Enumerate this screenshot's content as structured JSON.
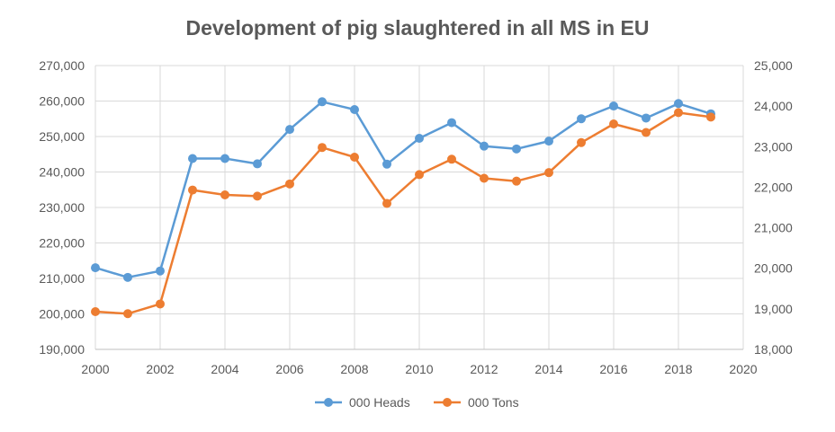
{
  "chart_data": {
    "type": "line",
    "title": "Development of pig slaughtered in all MS in EU",
    "x": [
      2000,
      2001,
      2002,
      2003,
      2004,
      2005,
      2006,
      2007,
      2008,
      2009,
      2010,
      2011,
      2012,
      2013,
      2014,
      2015,
      2016,
      2017,
      2018,
      2019
    ],
    "x_ticks": [
      "2000",
      "2002",
      "2004",
      "2006",
      "2008",
      "2010",
      "2012",
      "2014",
      "2016",
      "2018",
      "2020"
    ],
    "xlim": [
      2000,
      2020
    ],
    "y_left_ticks": [
      "190,000",
      "200,000",
      "210,000",
      "220,000",
      "230,000",
      "240,000",
      "250,000",
      "260,000",
      "270,000"
    ],
    "ylim_left": [
      190000,
      270000
    ],
    "y_right_ticks": [
      "18,000",
      "19,000",
      "20,000",
      "21,000",
      "22,000",
      "23,000",
      "24,000",
      "25,000"
    ],
    "ylim_right": [
      18000,
      25000
    ],
    "grid": true,
    "legend_position": "bottom",
    "series": [
      {
        "name": "000 Heads",
        "axis": "left",
        "color": "#5B9BD5",
        "values": [
          213000,
          210300,
          212100,
          243800,
          243800,
          242300,
          252000,
          259800,
          257600,
          242200,
          249500,
          253900,
          247300,
          246500,
          248700,
          255000,
          258600,
          255200,
          259300,
          256400
        ]
      },
      {
        "name": "000 Tons",
        "axis": "right",
        "color": "#ED7D31",
        "values": [
          18930,
          18880,
          19120,
          21930,
          21810,
          21780,
          22080,
          22980,
          22740,
          21600,
          22310,
          22690,
          22220,
          22150,
          22360,
          23100,
          23560,
          23350,
          23840,
          23730
        ]
      }
    ]
  }
}
